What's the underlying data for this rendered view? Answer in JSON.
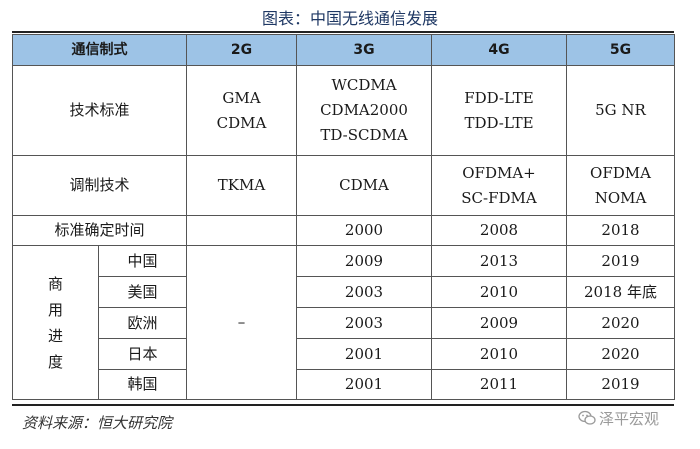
{
  "title": "图表：中国无线通信发展",
  "table": {
    "header": [
      "通信制式",
      "2G",
      "3G",
      "4G",
      "5G"
    ],
    "tech_standard": {
      "label": "技术标准",
      "g2": [
        "GMA",
        "CDMA"
      ],
      "g3": [
        "WCDMA",
        "CDMA2000",
        "TD-SCDMA"
      ],
      "g4": [
        "FDD-LTE",
        "TDD-LTE"
      ],
      "g5": [
        "5G NR"
      ]
    },
    "modulation": {
      "label": "调制技术",
      "g2": [
        "TKMA"
      ],
      "g3": [
        "CDMA"
      ],
      "g4": [
        "OFDMA+",
        "SC-FDMA"
      ],
      "g5": [
        "OFDMA",
        "NOMA"
      ]
    },
    "standard_date": {
      "label": "标准确定时间",
      "g3": "2000",
      "g4": "2008",
      "g5": "2018"
    },
    "commercial": {
      "label_chars": [
        "商",
        "用",
        "进",
        "度"
      ],
      "g2": "–",
      "rows": [
        {
          "country": "中国",
          "g3": "2009",
          "g4": "2013",
          "g5": "2019"
        },
        {
          "country": "美国",
          "g3": "2003",
          "g4": "2010",
          "g5": "2018 年底"
        },
        {
          "country": "欧洲",
          "g3": "2003",
          "g4": "2009",
          "g5": "2020"
        },
        {
          "country": "日本",
          "g3": "2001",
          "g4": "2010",
          "g5": "2020"
        },
        {
          "country": "韩国",
          "g3": "2001",
          "g4": "2011",
          "g5": "2019"
        }
      ]
    }
  },
  "source": "资料来源：恒大研究院",
  "watermark": "泽平宏观",
  "watermark_icon": "wechat-icon"
}
